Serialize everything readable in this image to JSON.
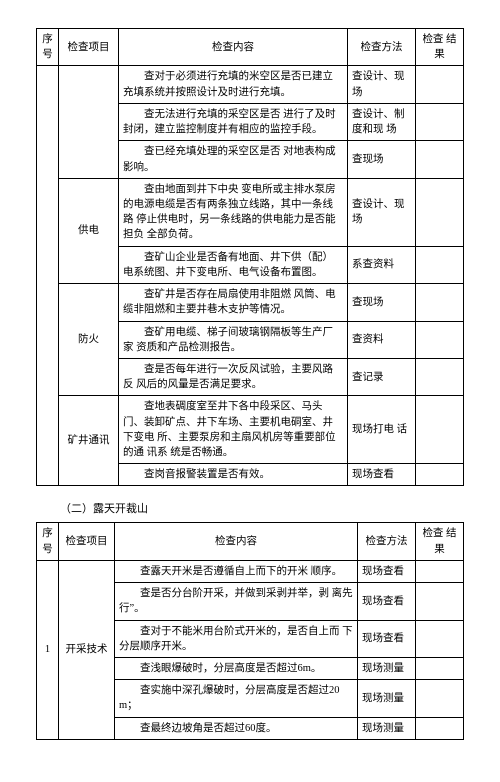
{
  "table1": {
    "headers": {
      "seq": "序号",
      "item": "检查项目",
      "content": "检查内容",
      "method": "检查方法",
      "result": "检查 结果"
    },
    "groups": [
      {
        "rows": [
          {
            "content": "　　查对于必须进行充填的米空区是否已建立 充填系统并按照设计及时进行充填。",
            "method": "查设计、现场"
          },
          {
            "content": "　　查无法进行充填的采空区是否 进行了及时 封闭，建立监控制度并有相应的监控手段。",
            "method": "查设计、制度和现 场"
          },
          {
            "content": "　　查已经充填处理的采空区是否 对地表构成 影响。",
            "method": "查现场"
          }
        ]
      },
      {
        "item": "供电",
        "rows": [
          {
            "content": "　　查由地面到井下中央 变电所或主排水泵房 的电源电缆是否有两条独立线路，其中一条线路 停止供电时，另一条线路的供电能力是否能担负 全部负荷。",
            "method": "查设计、现场"
          },
          {
            "content": "　　查矿山企业是否备有地面、井下供（配）电系统图、井下变电所、电气设备布置图。",
            "method": "系查资料"
          }
        ]
      },
      {
        "item": "防火",
        "rows": [
          {
            "content": "　　查矿井是否存在局扇使用非阻燃 风筒、电缆非阻燃和主要井巷木支护等情况。",
            "method": "查现场"
          },
          {
            "content": "　　查矿用电缆、梯子间玻璃钢隔板等生产厂家 资质和产品检测报告。",
            "method": "查资料"
          },
          {
            "content": "　　查是否每年进行一次反风试验，主要风路反 风后的风量是否满足要求。",
            "method": "查记录"
          }
        ]
      },
      {
        "item": "矿井通讯",
        "rows": [
          {
            "content": "　　查地表碉度室至井下各中段采区、马头门、装卸矿点、井下车场、主要机电硐室、井下变电 所、主要泵房和主扇风机房等重要部位的通 讯系 统是否畅通。",
            "method": "现场打电 话"
          },
          {
            "content": "　　查岗音报警装置是否有效。",
            "method": "现场查看"
          }
        ]
      }
    ]
  },
  "sectionTitle": "（二）露天开裁山",
  "table2": {
    "headers": {
      "seq": "序号",
      "item": "检查项目",
      "content": "检查内容",
      "method": "检查方法",
      "result": "检查 结果"
    },
    "group": {
      "seq": "1",
      "item": "开采技术",
      "rows": [
        {
          "content": "　　查露天开米是否遵循自上而下的开米 顺序。",
          "method": "现场查看"
        },
        {
          "content": "　　查是否分台阶开采，并做到采剥并举，剥 离先行”。",
          "method": "现场查看"
        },
        {
          "content": "　　查对于不能米用台阶式开米的，是否自上而 下分层顺序开米。",
          "method": "现场查看"
        },
        {
          "content": "　　查浅眼爆破时，分层高度是否超过6m。",
          "method": "现场测量"
        },
        {
          "content": "　　查实施中深孔爆破时，分层高度是否超过20m；",
          "method": "现场测量"
        },
        {
          "content": "　　查最终边坡角是否超过60度。",
          "method": "现场测量"
        }
      ]
    }
  }
}
